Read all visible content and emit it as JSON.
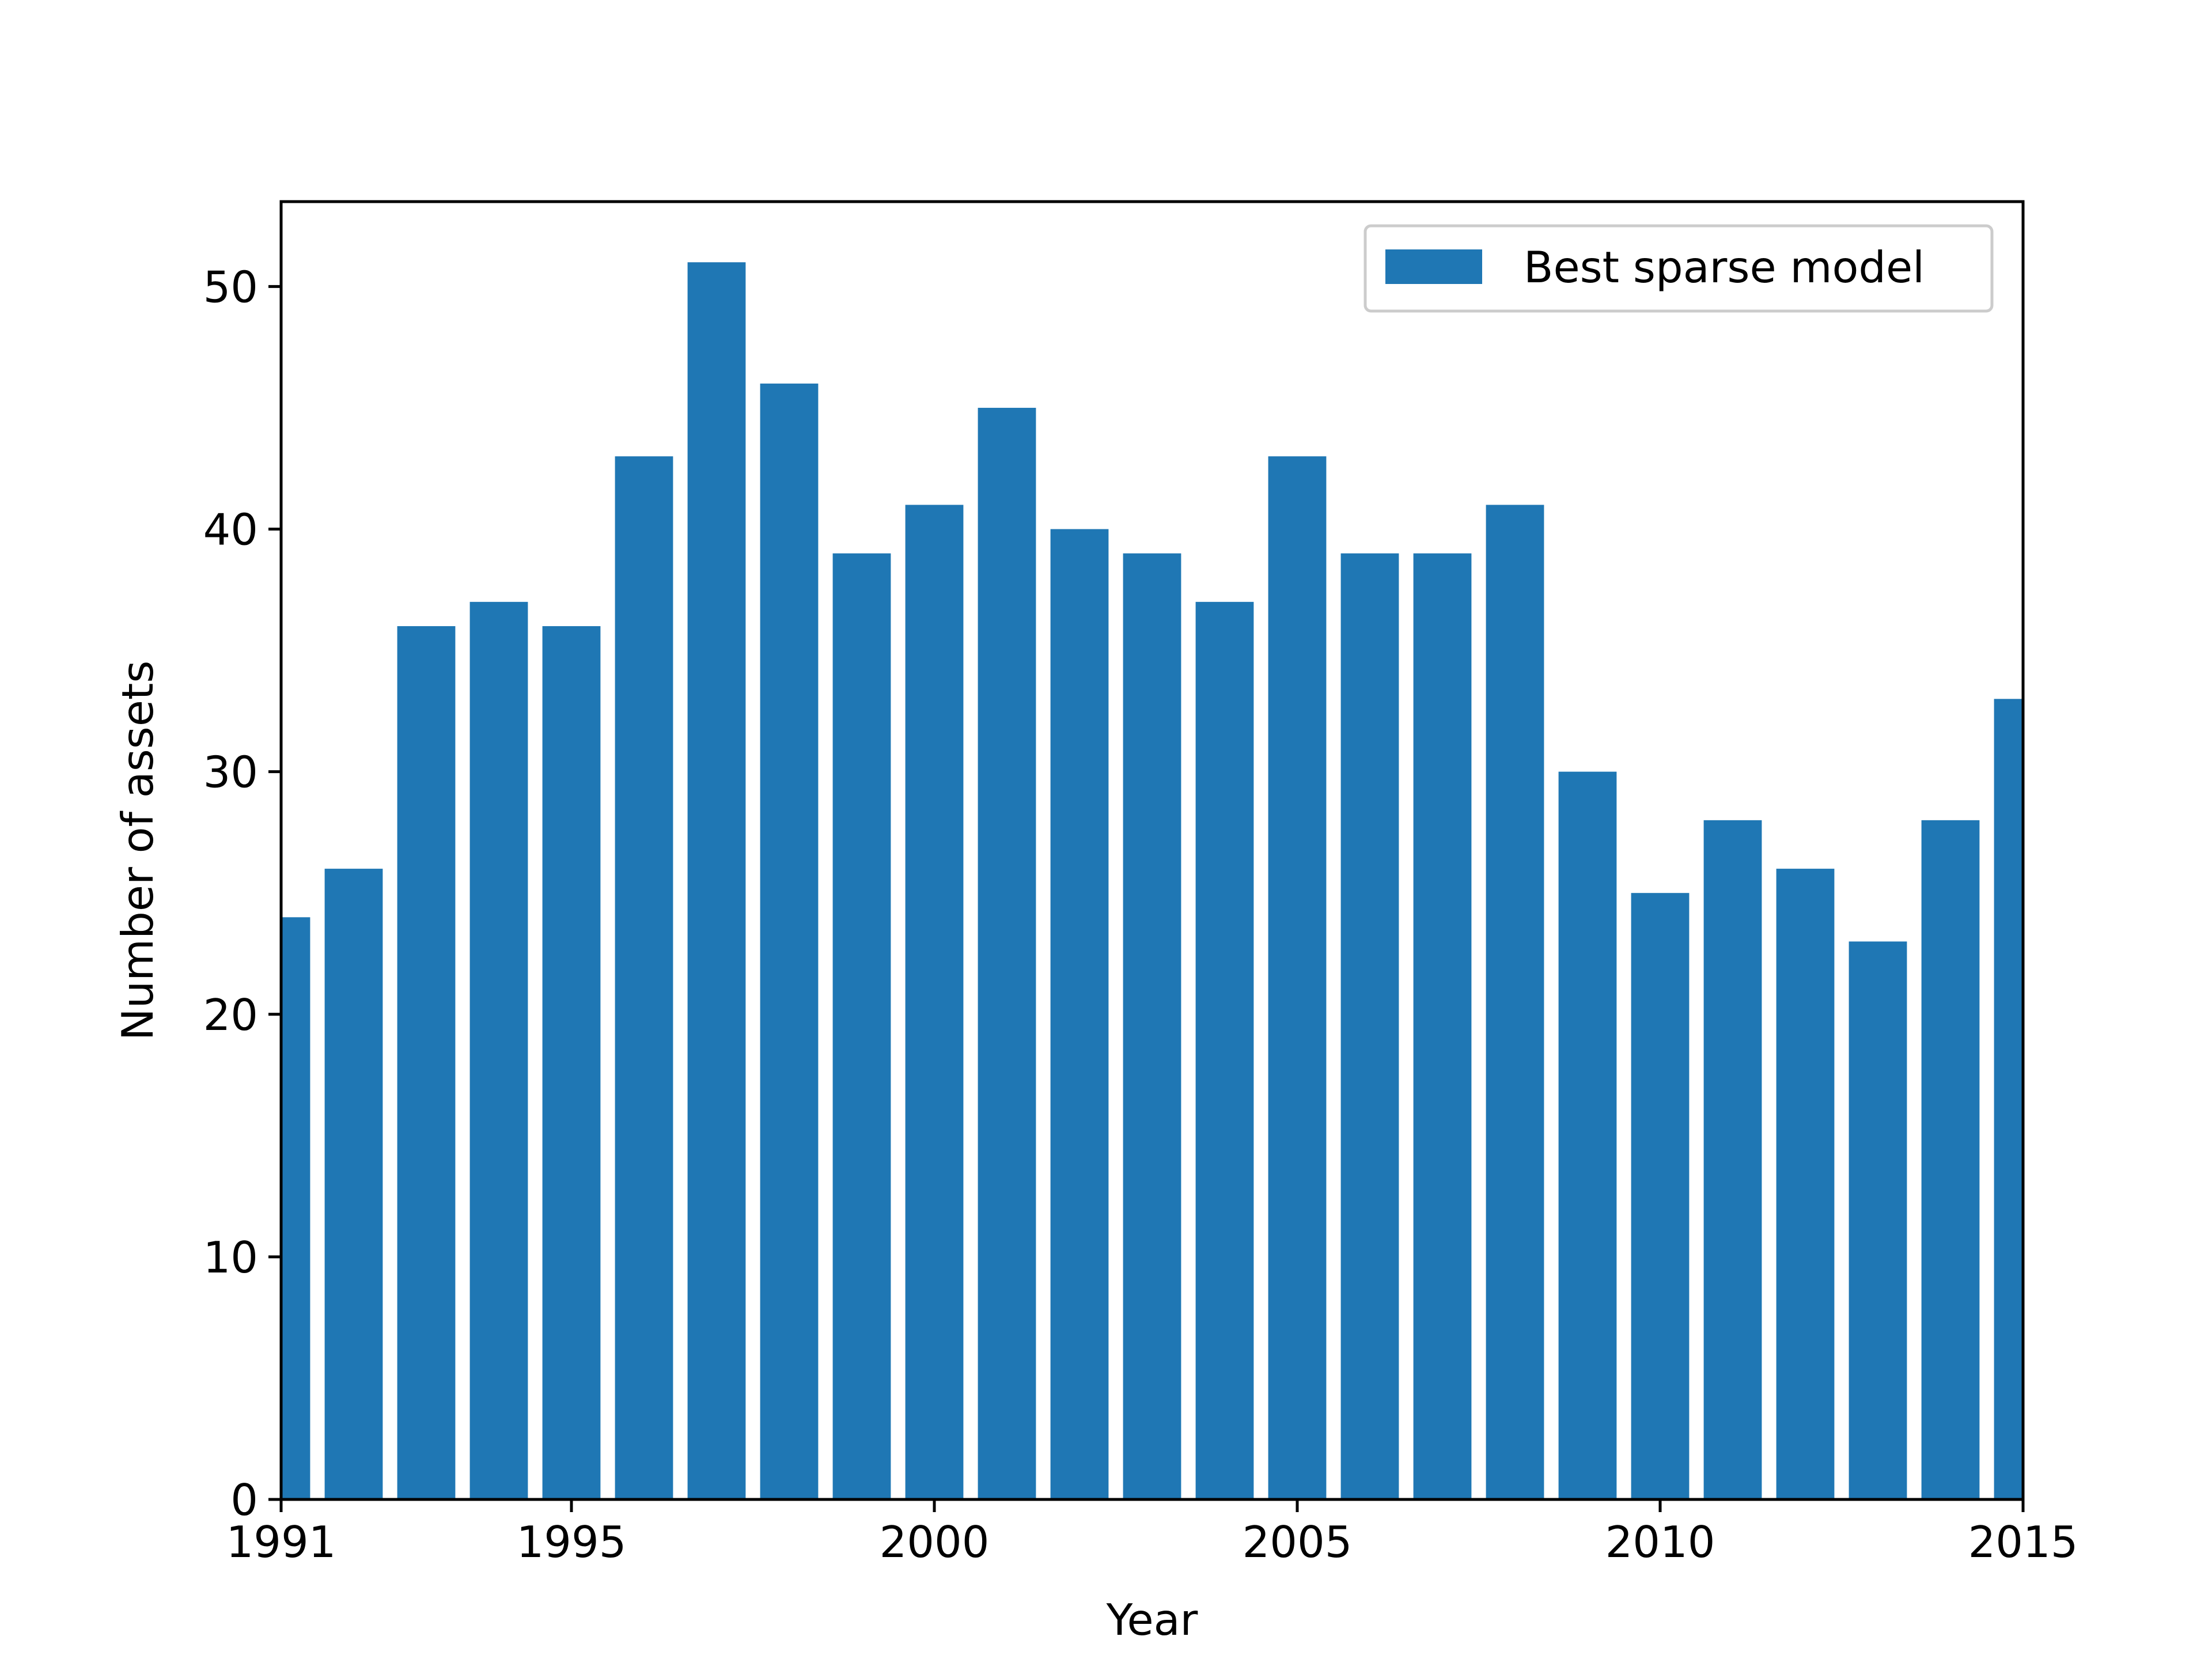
{
  "chart_data": {
    "type": "bar",
    "x": [
      1991,
      1992,
      1993,
      1994,
      1995,
      1996,
      1997,
      1998,
      1999,
      2000,
      2001,
      2002,
      2003,
      2004,
      2005,
      2006,
      2007,
      2008,
      2009,
      2010,
      2011,
      2012,
      2013,
      2014,
      2015
    ],
    "series": [
      {
        "name": "Best sparse model",
        "values": [
          24,
          26,
          36,
          37,
          36,
          43,
          51,
          46,
          39,
          41,
          45,
          40,
          39,
          37,
          43,
          39,
          39,
          41,
          30,
          25,
          28,
          26,
          23,
          28,
          33
        ],
        "color": "#1f77b4"
      }
    ],
    "xlabel": "Year",
    "ylabel": "Number of assets",
    "xlim": [
      1991,
      2015
    ],
    "ylim": [
      0,
      53.5
    ],
    "xticks": [
      1991,
      1995,
      2000,
      2005,
      2010,
      2015
    ],
    "yticks": [
      0,
      10,
      20,
      30,
      40,
      50
    ],
    "grid": false,
    "legend_position": "upper-right"
  }
}
